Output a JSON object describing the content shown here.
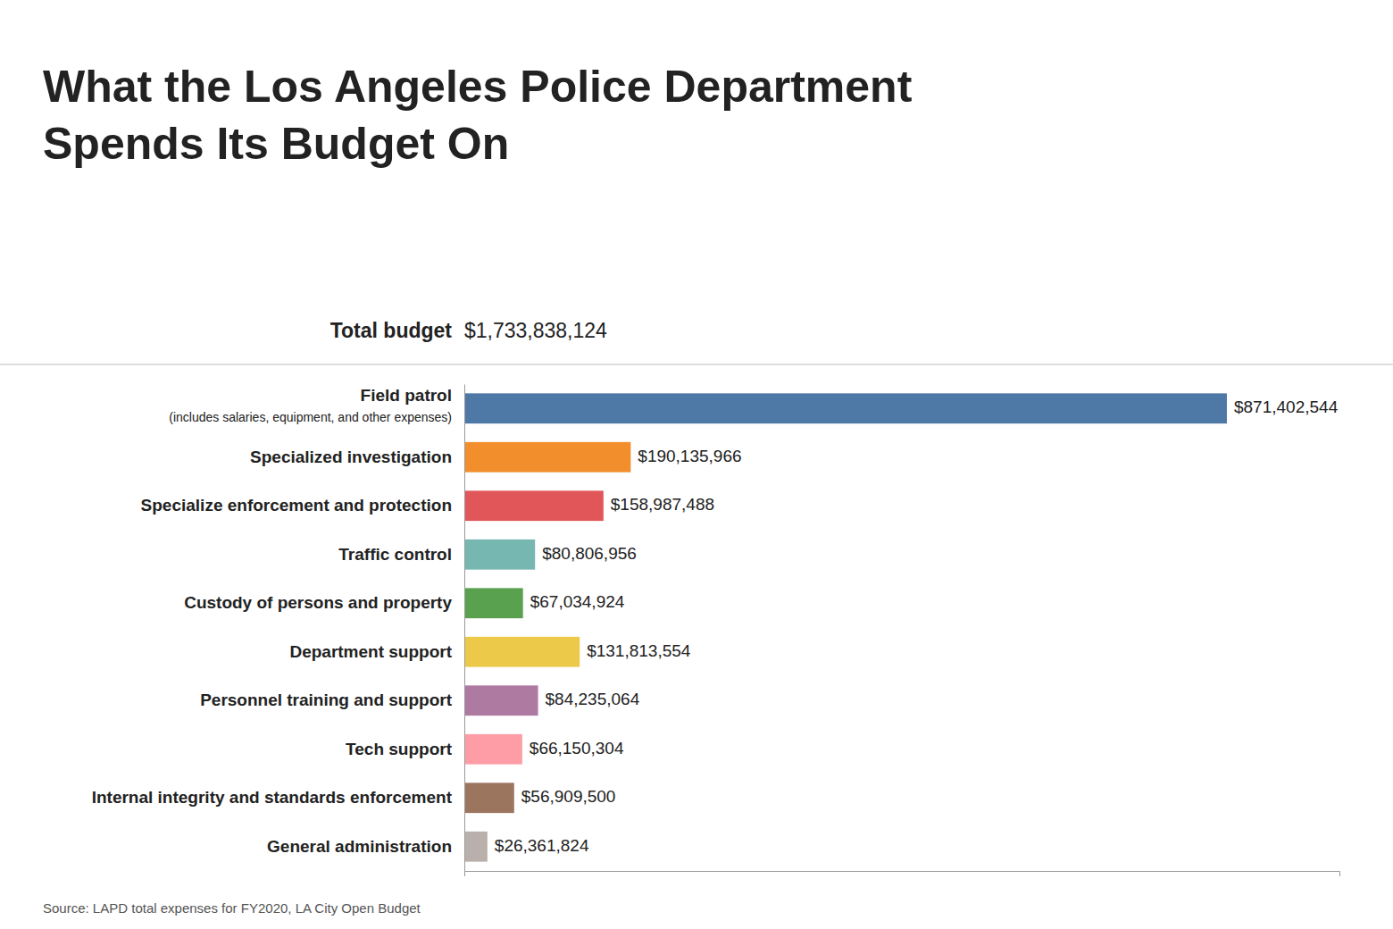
{
  "chart_data": {
    "type": "bar",
    "orientation": "horizontal",
    "title": [
      "What the Los Angeles Police Department",
      "Spends Its Budget On"
    ],
    "total": {
      "label": "Total budget",
      "value_label": "$1,733,838,124"
    },
    "source": "Source: LAPD total expenses for FY2020, LA City Open Budget",
    "categories": [
      "Field patrol",
      "Specialized investigation",
      "Specialize enforcement and protection",
      "Traffic control",
      "Custody of persons and property",
      "Department support",
      "Personnel training and support",
      "Tech support",
      "Internal integrity and standards enforcement",
      "General administration"
    ],
    "category_notes": [
      "(includes salaries, equipment, and other expenses)",
      null,
      null,
      null,
      null,
      null,
      null,
      null,
      null,
      null
    ],
    "values": [
      871402544,
      190135966,
      158987488,
      80806956,
      67034924,
      131813554,
      84235064,
      66150304,
      56909500,
      26361824
    ],
    "value_labels": [
      "$871,402,544",
      "$190,135,966",
      "$158,987,488",
      "$80,806,956",
      "$67,034,924",
      "$131,813,554",
      "$84,235,064",
      "$66,150,304",
      "$56,909,500",
      "$26,361,824"
    ],
    "data_labels": true,
    "xlim": [
      0,
      1000000000
    ],
    "xticks": [],
    "tick_labels": "y",
    "grid": false
  }
}
